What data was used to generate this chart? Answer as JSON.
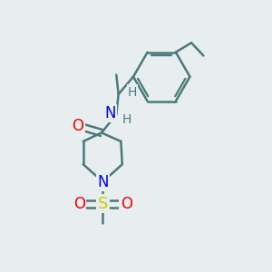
{
  "bg_color": "#e8eef0",
  "bond_color": "#4a7a7a",
  "bond_width": 1.8,
  "atom_colors": {
    "N": "#0000ee",
    "O": "#ee0000",
    "S": "#cccc00",
    "C": "#4a7a7a",
    "H": "#4a7a7a"
  },
  "font_size_atom": 12,
  "font_size_h": 10
}
